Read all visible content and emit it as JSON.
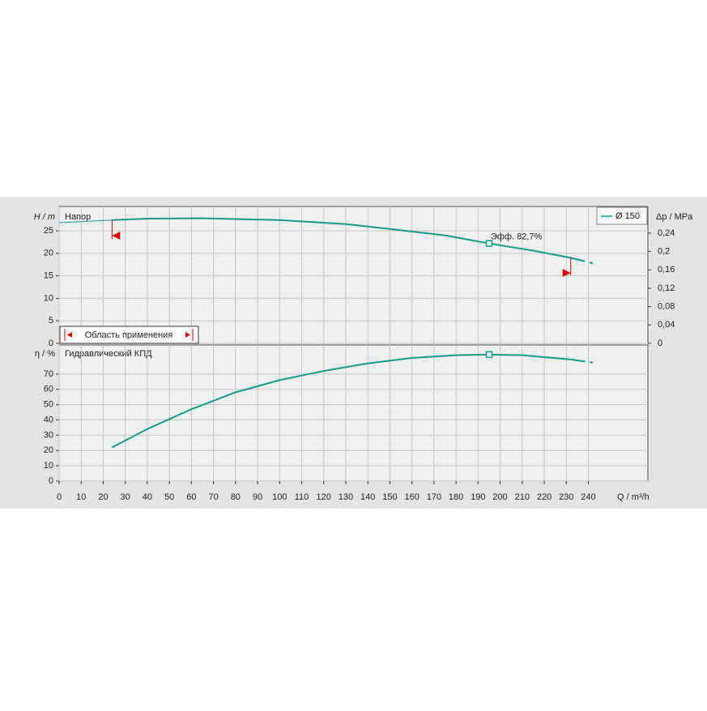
{
  "chart_data": [
    {
      "type": "line",
      "label": "Напор",
      "y_label": "H / m",
      "y2_label": "Δp / MPa",
      "x": [
        0,
        24,
        40,
        65,
        100,
        130,
        150,
        175,
        195,
        215,
        232,
        242
      ],
      "series": [
        {
          "name": "Ø 150",
          "color": "#16998a",
          "values": [
            26.8,
            27.4,
            27.7,
            27.8,
            27.4,
            26.5,
            25.4,
            24.0,
            22.2,
            20.6,
            19.0,
            17.8
          ]
        }
      ],
      "xlim": [
        0,
        267
      ],
      "ylim": [
        0,
        30.4
      ],
      "yticks": [
        0,
        5,
        10,
        15,
        20,
        25
      ],
      "y2lim": [
        0,
        0.298
      ],
      "y2ticks": [
        0,
        {
          "value": 0.04,
          "label": "0,04"
        },
        {
          "value": 0.08,
          "label": "0,08"
        },
        {
          "value": 0.12,
          "label": "0,12"
        },
        {
          "value": 0.16,
          "label": "0,16"
        },
        {
          "value": 0.2,
          "label": "0,2"
        },
        {
          "value": 0.24,
          "label": "0,24"
        }
      ],
      "operating_range": {
        "label": "Область применения",
        "x": [
          24,
          232
        ]
      },
      "annotation": {
        "text": "Эфф.  82,7%",
        "x": 195,
        "y": 22.2
      },
      "legend": "upper right",
      "grid": true
    },
    {
      "type": "line",
      "label": "Гидравлический КПД",
      "y_label": "η / %",
      "x_label": "Q / m³/h",
      "x": [
        24,
        40,
        60,
        80,
        100,
        120,
        140,
        160,
        180,
        195,
        210,
        232,
        242
      ],
      "series": [
        {
          "color": "#16998a",
          "values": [
            22,
            34,
            47,
            58,
            66,
            72,
            77,
            80.5,
            82.3,
            82.7,
            82.3,
            79.5,
            77.5
          ]
        }
      ],
      "xlim": [
        0,
        267
      ],
      "xticks": [
        0,
        10,
        20,
        30,
        40,
        50,
        60,
        70,
        80,
        90,
        100,
        110,
        120,
        130,
        140,
        150,
        160,
        170,
        180,
        190,
        200,
        210,
        220,
        230,
        240
      ],
      "ylim": [
        0,
        89
      ],
      "yticks": [
        0,
        10,
        20,
        30,
        40,
        50,
        60,
        70
      ],
      "best_point": {
        "x": 195,
        "y": 82.7
      },
      "grid": true
    }
  ]
}
